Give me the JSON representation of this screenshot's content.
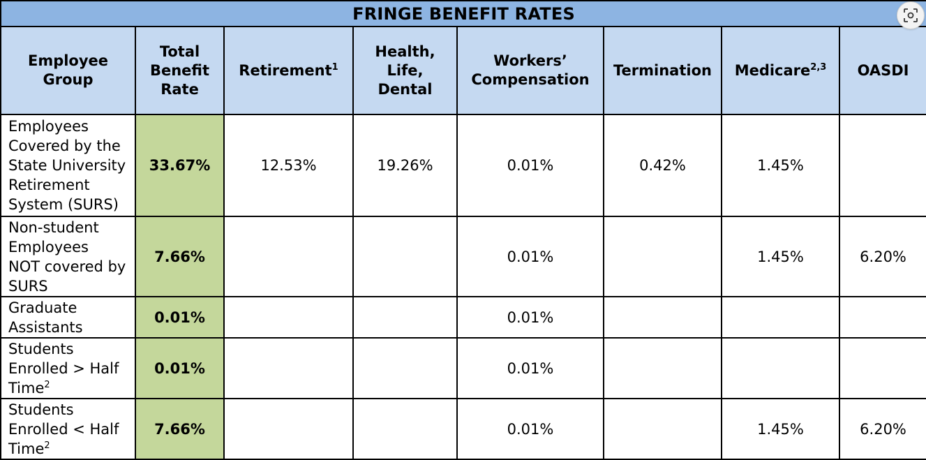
{
  "table": {
    "title": "FRINGE BENEFIT RATES",
    "headers": [
      {
        "lines": [
          "Employee",
          "Group"
        ],
        "sup": ""
      },
      {
        "lines": [
          "Total",
          "Benefit",
          "Rate"
        ],
        "sup": ""
      },
      {
        "lines": [
          "Retirement"
        ],
        "sup": "1"
      },
      {
        "lines": [
          "Health,",
          "Life,",
          "Dental"
        ],
        "sup": ""
      },
      {
        "lines": [
          "Workers’",
          "Compensation"
        ],
        "sup": ""
      },
      {
        "lines": [
          "Termination"
        ],
        "sup": ""
      },
      {
        "lines": [
          "Medicare"
        ],
        "sup": "2,3"
      },
      {
        "lines": [
          "OASDI"
        ],
        "sup": ""
      }
    ],
    "rows": [
      {
        "group_lines": [
          "Employees",
          "Covered by the",
          "State University",
          "Retirement",
          "System (SURS)"
        ],
        "group_sup": "",
        "total": "33.67%",
        "retirement": "12.53%",
        "health": "19.26%",
        "workers": "0.01%",
        "termination": "0.42%",
        "medicare": "1.45%",
        "oasdi": ""
      },
      {
        "group_lines": [
          "Non-student",
          "Employees",
          "NOT covered by",
          "SURS"
        ],
        "group_sup": "",
        "total": "7.66%",
        "retirement": "",
        "health": "",
        "workers": "0.01%",
        "termination": "",
        "medicare": "1.45%",
        "oasdi": "6.20%"
      },
      {
        "group_lines": [
          "Graduate",
          "Assistants"
        ],
        "group_sup": "",
        "total": "0.01%",
        "retirement": "",
        "health": "",
        "workers": "0.01%",
        "termination": "",
        "medicare": "",
        "oasdi": ""
      },
      {
        "group_lines": [
          "Students",
          "Enrolled > Half",
          "Time"
        ],
        "group_sup": "2",
        "total": "0.01%",
        "retirement": "",
        "health": "",
        "workers": "0.01%",
        "termination": "",
        "medicare": "",
        "oasdi": ""
      },
      {
        "group_lines": [
          "Students",
          "Enrolled < Half",
          "Time"
        ],
        "group_sup": "2",
        "total": "7.66%",
        "retirement": "",
        "health": "",
        "workers": "0.01%",
        "termination": "",
        "medicare": "1.45%",
        "oasdi": "6.20%"
      }
    ]
  },
  "overlay": {
    "icon": "visual-search-icon"
  }
}
